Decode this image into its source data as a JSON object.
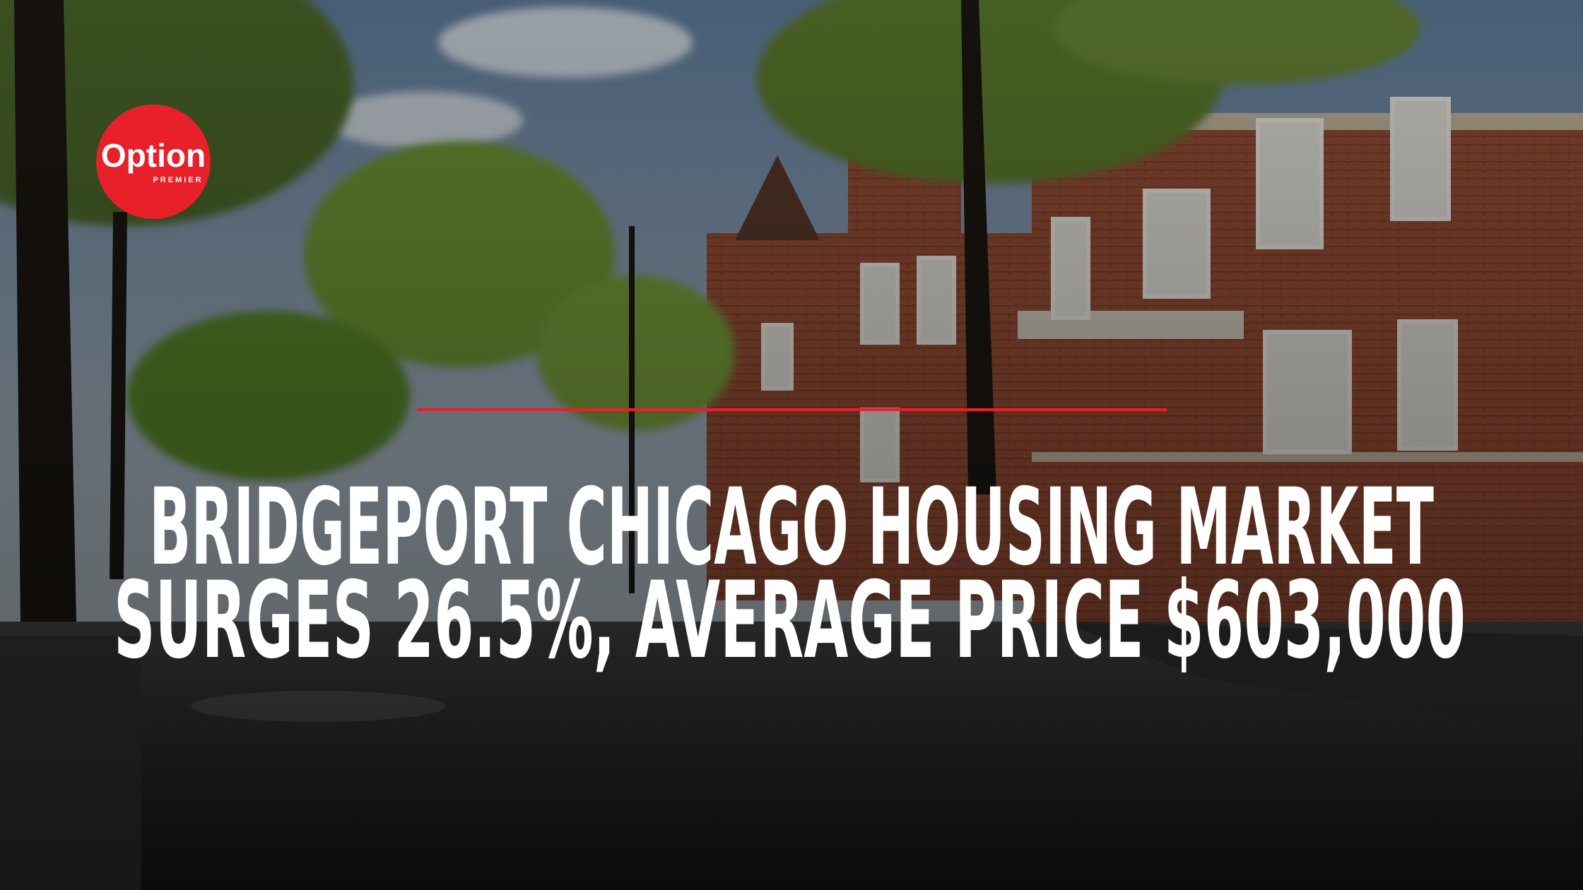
{
  "logo": {
    "name": "Option",
    "tagline": "PREMIER"
  },
  "headline": {
    "lines": [
      "BRIDGEPORT CHICAGO HOUSING MARKET",
      "SURGES 26.5%, AVERAGE PRICE $603,000"
    ]
  }
}
